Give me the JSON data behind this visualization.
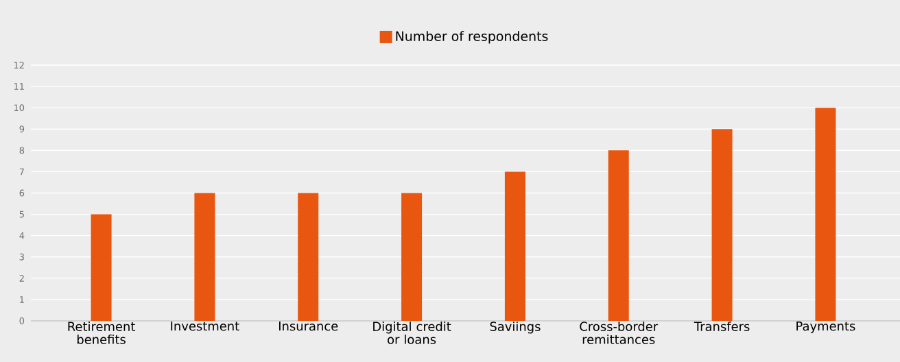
{
  "chart_data": {
    "type": "bar",
    "categories": [
      "Retirement benefits",
      "Investment",
      "Insurance",
      "Digital credit or loans",
      "Saviings",
      "Cross-border remittances",
      "Transfers",
      "Payments"
    ],
    "series": [
      {
        "name": "Number of respondents",
        "color": "#e8560f",
        "values": [
          5,
          6,
          6,
          6,
          7,
          8,
          9,
          10
        ]
      }
    ],
    "ylim": [
      0,
      12
    ],
    "yticks": [
      0,
      1,
      2,
      3,
      4,
      5,
      6,
      7,
      8,
      9,
      10,
      11,
      12
    ],
    "grid": "y",
    "legend": "top"
  }
}
